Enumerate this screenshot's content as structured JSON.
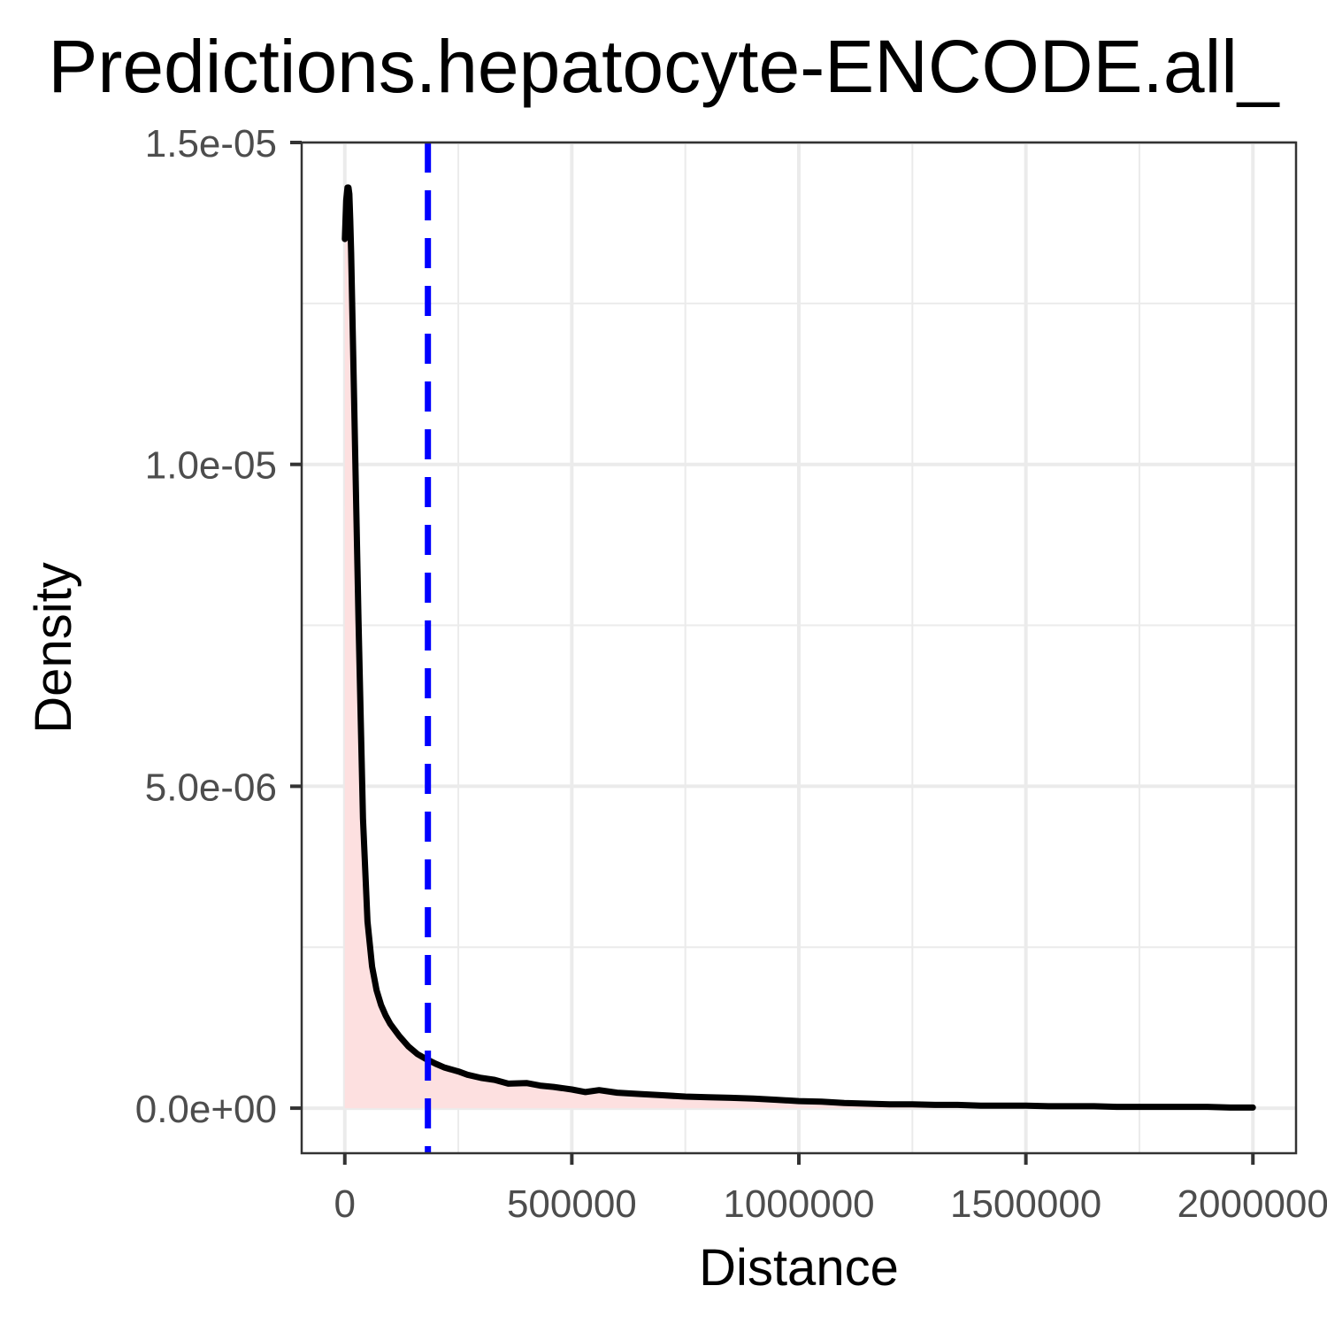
{
  "chart_data": {
    "type": "area",
    "title": "Predictions.hepatocyte-ENCODE.all_",
    "xlabel": "Distance",
    "ylabel": "Density",
    "xlim": [
      -95000,
      2095000
    ],
    "ylim": [
      -7e-07,
      1.5e-05
    ],
    "x_ticks": [
      0,
      500000,
      1000000,
      1500000,
      2000000
    ],
    "x_tick_labels": [
      "0",
      "500000",
      "1000000",
      "1500000",
      "2000000"
    ],
    "x_minor_ticks": [
      250000,
      750000,
      1250000,
      1750000
    ],
    "y_ticks": [
      0,
      5e-06,
      1e-05,
      1.5e-05
    ],
    "y_tick_labels": [
      "0.0e+00",
      "5.0e-06",
      "1.0e-05",
      "1.5e-05"
    ],
    "y_minor_ticks": [
      2.5e-06,
      7.5e-06,
      1.25e-05
    ],
    "grid": true,
    "fill_color": "#fde0e0",
    "line_color": "#000000",
    "vline": {
      "x": 183000,
      "color": "#0000ff",
      "style": "dashed"
    },
    "series": [
      {
        "x": [
          0,
          3000,
          6000,
          8000,
          10000,
          12000,
          14000,
          20000,
          30000,
          40000,
          50000,
          60000,
          70000,
          80000,
          90000,
          100000,
          120000,
          140000,
          160000,
          180000,
          200000,
          220000,
          250000,
          270000,
          300000,
          330000,
          360000,
          400000,
          430000,
          460000,
          500000,
          530000,
          560000,
          600000,
          650000,
          700000,
          750000,
          800000,
          850000,
          900000,
          950000,
          1000000,
          1050000,
          1100000,
          1150000,
          1200000,
          1250000,
          1300000,
          1350000,
          1400000,
          1450000,
          1500000,
          1550000,
          1600000,
          1650000,
          1700000,
          1750000,
          1800000,
          1850000,
          1900000,
          1950000,
          2000000
        ],
        "y": [
          1.35e-05,
          1.41e-05,
          1.43e-05,
          1.43e-05,
          1.42e-05,
          1.38e-05,
          1.33e-05,
          1.12e-05,
          7.6e-06,
          4.5e-06,
          2.9e-06,
          2.2e-06,
          1.83e-06,
          1.6e-06,
          1.44e-06,
          1.31e-06,
          1.12e-06,
          9.6e-07,
          8.4e-07,
          7.6e-07,
          6.9e-07,
          6.3e-07,
          5.7e-07,
          5.2e-07,
          4.7e-07,
          4.4e-07,
          3.8e-07,
          3.9e-07,
          3.5e-07,
          3.3e-07,
          2.9e-07,
          2.5e-07,
          2.8e-07,
          2.4e-07,
          2.2e-07,
          2e-07,
          1.8e-07,
          1.7e-07,
          1.6e-07,
          1.5e-07,
          1.3e-07,
          1.1e-07,
          1e-07,
          8e-08,
          7e-08,
          6e-08,
          6e-08,
          5e-08,
          5e-08,
          4e-08,
          4e-08,
          4e-08,
          3e-08,
          3e-08,
          3e-08,
          2e-08,
          2e-08,
          2e-08,
          2e-08,
          2e-08,
          1e-08,
          1e-08
        ]
      }
    ]
  }
}
